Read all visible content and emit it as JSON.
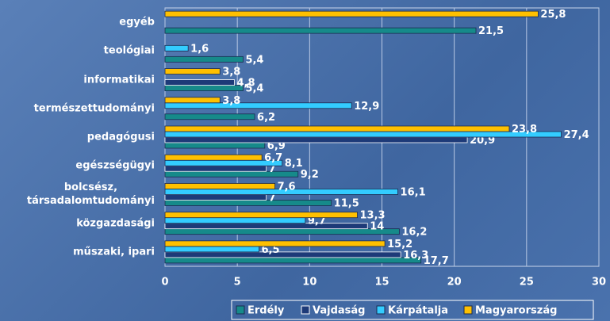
{
  "chart_data": {
    "type": "bar",
    "orientation": "horizontal",
    "categories": [
      "egyéb",
      "teológiai",
      "informatikai",
      "természettudományi",
      "pedagógusi",
      "egészségügyi",
      "bolcsész,\ntársadalomtudományi",
      "közgazdasági",
      "műszaki, ipari"
    ],
    "series": [
      {
        "name": "Erdély",
        "color": "#168a8a",
        "values": [
          21.5,
          5.4,
          5.4,
          6.2,
          6.9,
          9.2,
          11.5,
          16.2,
          17.7
        ],
        "value_labels": [
          "21,5",
          "5,4",
          "5,4",
          "6,2",
          "6,9",
          "9,2",
          "11,5",
          "16,2",
          "17,7"
        ]
      },
      {
        "name": "Vajdaság",
        "color": "#1d3a78",
        "values": [
          null,
          null,
          4.8,
          null,
          20.9,
          7,
          7,
          14,
          16.3
        ],
        "value_labels": [
          null,
          null,
          "4,8",
          null,
          "20,9",
          "7",
          "7",
          "14",
          "16,3"
        ]
      },
      {
        "name": "Kárpátalja",
        "color": "#33ccff",
        "values": [
          null,
          1.6,
          null,
          12.9,
          27.4,
          8.1,
          16.1,
          9.7,
          6.5
        ],
        "value_labels": [
          null,
          "1,6",
          null,
          "12,9",
          "27,4",
          "8,1",
          "16,1",
          "9,7",
          "6,5"
        ]
      },
      {
        "name": "Magyarország",
        "color": "#ffc000",
        "values": [
          25.8,
          null,
          3.8,
          3.8,
          23.8,
          6.7,
          7.6,
          13.3,
          15.2
        ],
        "value_labels": [
          "25,8",
          null,
          "3,8",
          "3,8",
          "23,8",
          "6,7",
          "7,6",
          "13,3",
          "15,2"
        ]
      }
    ],
    "xlim": [
      0,
      30
    ],
    "xticks": [
      0,
      5,
      10,
      15,
      20,
      25,
      30
    ],
    "grid": true,
    "legend": "bottom-right"
  }
}
